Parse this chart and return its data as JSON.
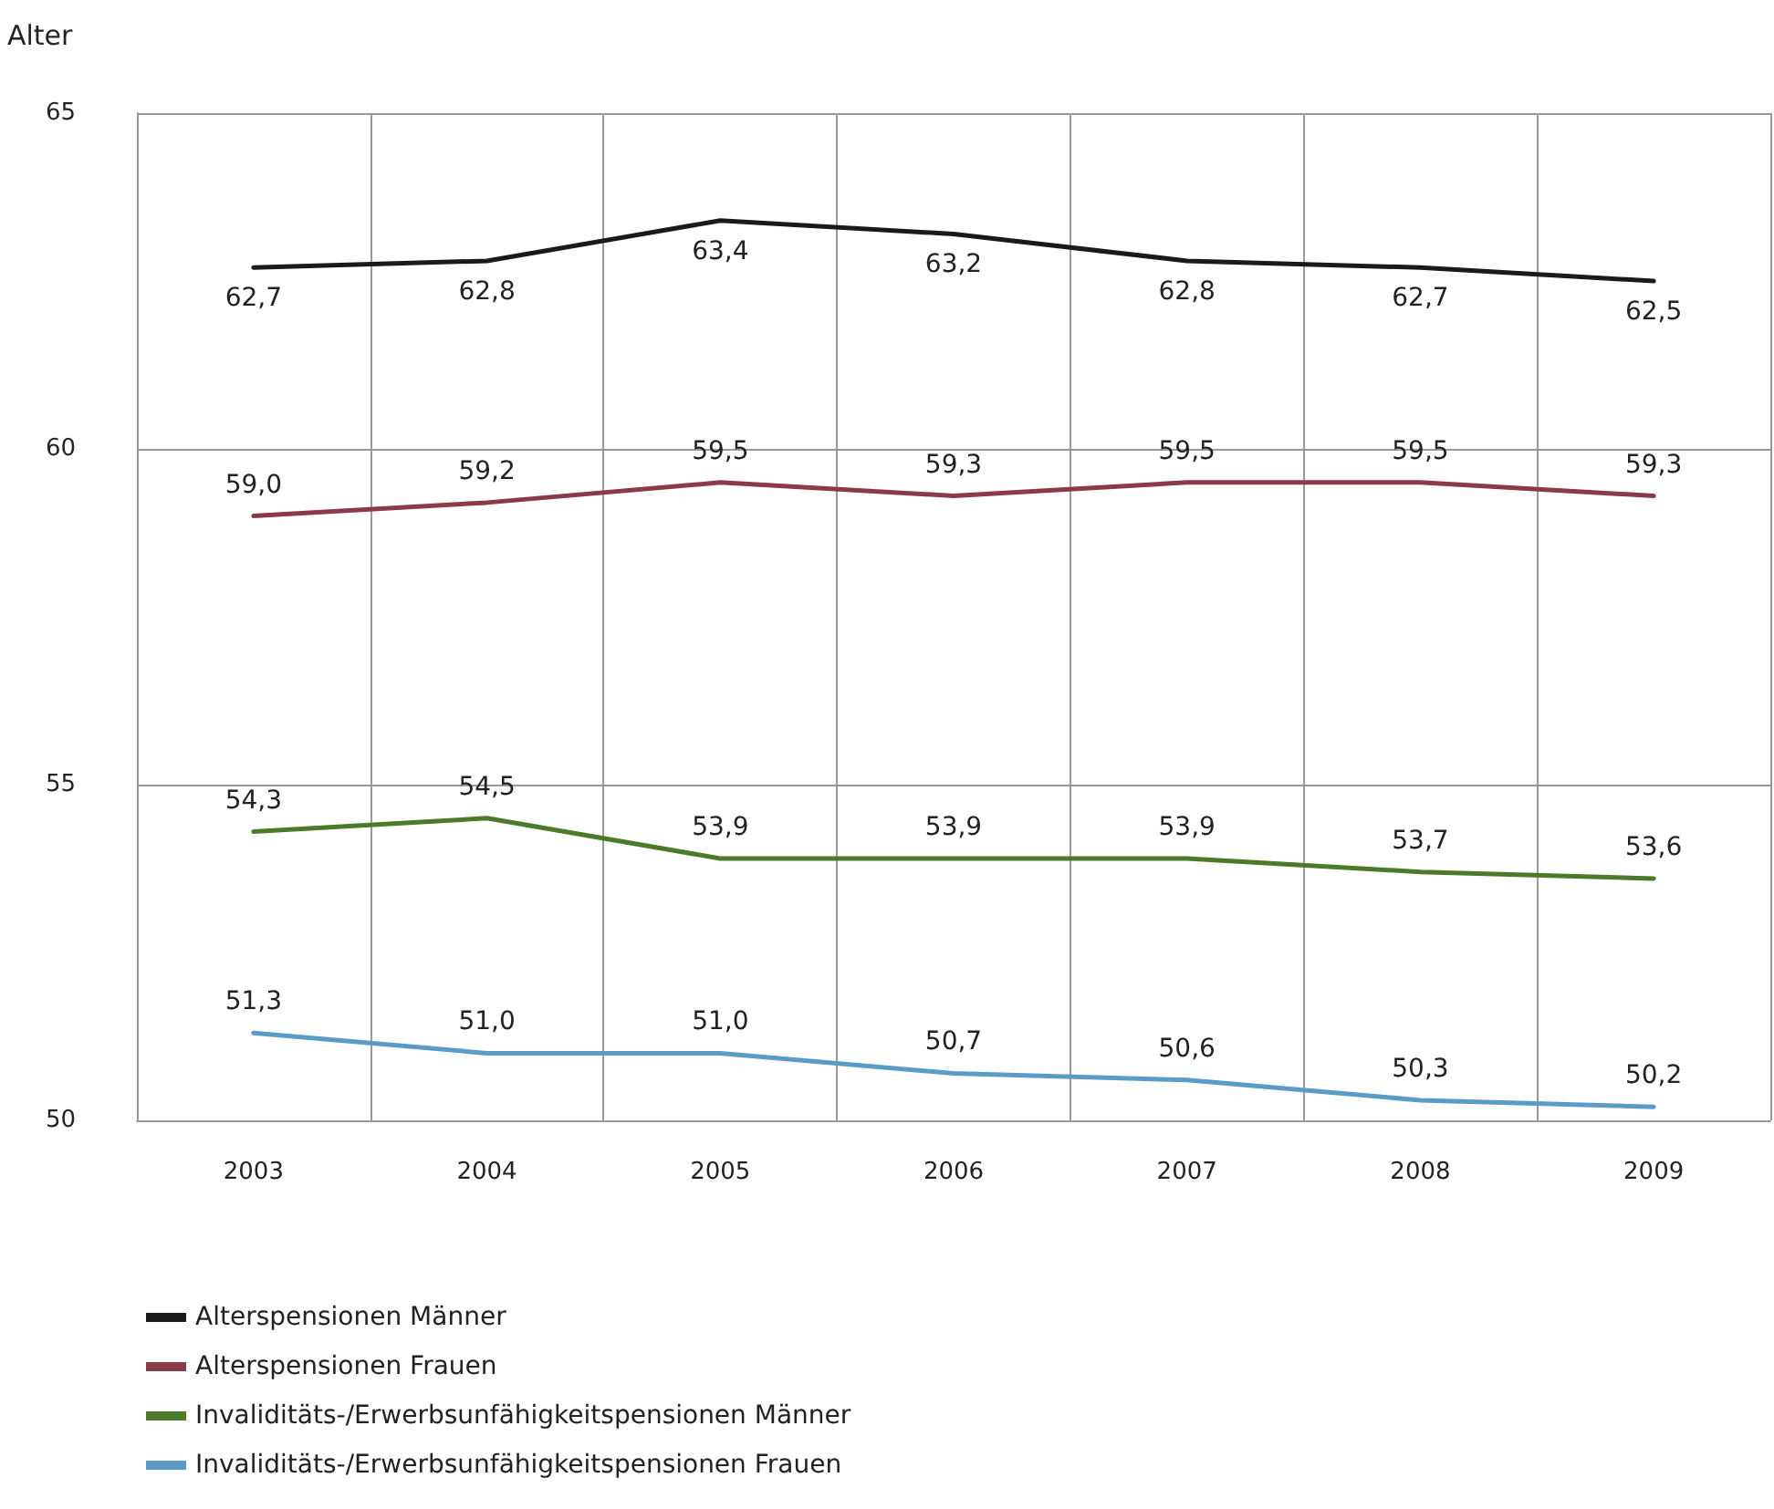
{
  "chart_data": {
    "type": "line",
    "ylabel": "Alter",
    "categories": [
      "2003",
      "2004",
      "2005",
      "2006",
      "2007",
      "2008",
      "2009"
    ],
    "series": [
      {
        "name": "Alterspensionen Männer",
        "color": "#1a1a1a",
        "values": [
          62.7,
          62.8,
          63.4,
          63.2,
          62.8,
          62.7,
          62.5
        ],
        "value_labels": [
          "62,7",
          "62,8",
          "63,4",
          "63,2",
          "62,8",
          "62,7",
          "62,5"
        ]
      },
      {
        "name": "Alterspensionen Frauen",
        "color": "#8b3a4a",
        "values": [
          59.0,
          59.2,
          59.5,
          59.3,
          59.5,
          59.5,
          59.3
        ],
        "value_labels": [
          "59,0",
          "59,2",
          "59,5",
          "59,3",
          "59,5",
          "59,5",
          "59,3"
        ]
      },
      {
        "name": "Invaliditäts-/Erwerbsunfähigkeitspensionen Männer",
        "color": "#4a7a2a",
        "values": [
          54.3,
          54.5,
          53.9,
          53.9,
          53.9,
          53.7,
          53.6
        ],
        "value_labels": [
          "54,3",
          "54,5",
          "53,9",
          "53,9",
          "53,9",
          "53,7",
          "53,6"
        ]
      },
      {
        "name": "Invaliditäts-/Erwerbsunfähigkeitspensionen Frauen",
        "color": "#5b9bc8",
        "values": [
          51.3,
          51.0,
          51.0,
          50.7,
          50.6,
          50.3,
          50.2
        ],
        "value_labels": [
          "51,3",
          "51,0",
          "51,0",
          "50,7",
          "50,6",
          "50,3",
          "50,2"
        ]
      }
    ],
    "ylim": [
      50,
      65
    ],
    "yticks": [
      50,
      55,
      60,
      65
    ],
    "grid": true,
    "legend": "bottom",
    "marker": "none",
    "line_style": "solid"
  }
}
